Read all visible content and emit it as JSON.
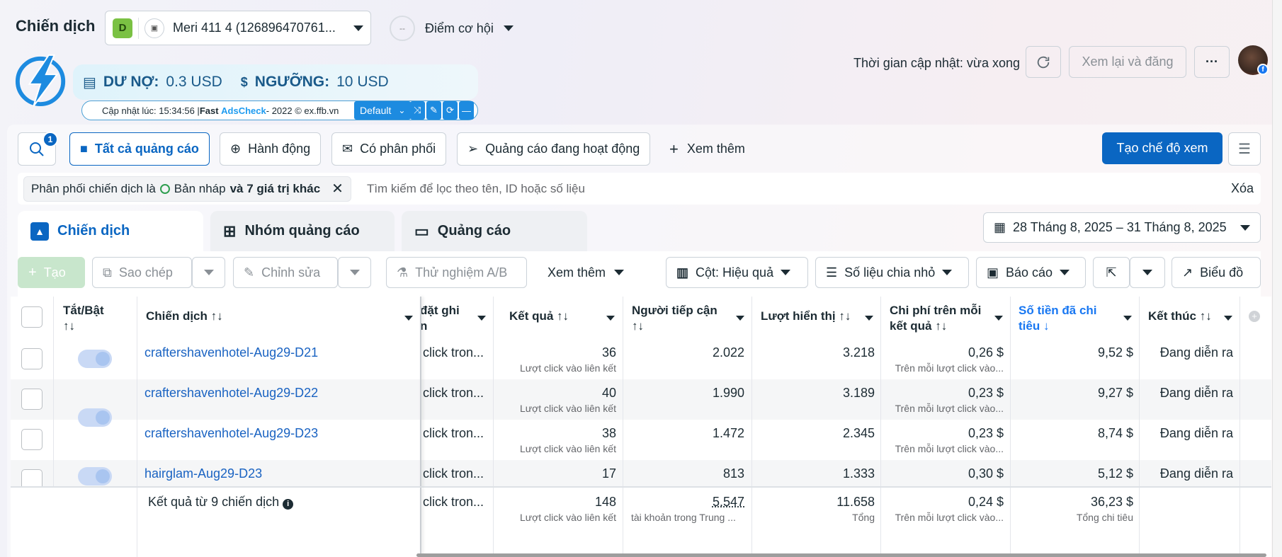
{
  "header": {
    "title": "Chiến dịch",
    "account": {
      "avatar_letter": "D",
      "name": "Meri 411 4 (126896470761..."
    },
    "opportunity": {
      "ring_text": "--",
      "label": "Điểm cơ hội"
    },
    "update_time": "Thời gian cập nhật: vừa xong",
    "review_button": "Xem lại và đăng",
    "more_button": "···"
  },
  "adscheck": {
    "debt_label": "DƯ NỢ:",
    "debt_value": "0.3 USD",
    "threshold_label": "NGƯỠNG:",
    "threshold_value": "10 USD",
    "updated_prefix": "Cập nhật lúc: 15:34:56 | ",
    "brand_fast": "Fast",
    "brand_adscheck": "AdsCheck",
    "updated_suffix": " - 2022 © ex.ffb.vn",
    "preset": "Default"
  },
  "filters": {
    "search_badge": "1",
    "buttons": [
      "Tất cả quảng cáo",
      "Hành động",
      "Có phân phối",
      "Quảng cáo đang hoạt động",
      "Xem thêm"
    ],
    "create_view": "Tạo chế độ xem",
    "chip_prefix": "Phân phối chiến dịch là",
    "chip_value": "Bản nháp",
    "chip_more": "và 7 giá trị khác",
    "search_placeholder": "Tìm kiếm để lọc theo tên, ID hoặc số liệu",
    "clear": "Xóa"
  },
  "tabs": [
    "Chiến dịch",
    "Nhóm quảng cáo",
    "Quảng cáo"
  ],
  "date_range": "28 Tháng 8, 2025 – 31 Tháng 8, 2025",
  "toolbar": {
    "create": "Tạo",
    "copy": "Sao chép",
    "edit": "Chỉnh sửa",
    "ab_test": "Thử nghiệm A/B",
    "more": "Xem thêm",
    "columns": "Cột: Hiệu quả",
    "breakdown": "Số liệu chia nhỏ",
    "reports": "Báo cáo",
    "chart": "Biểu đồ"
  },
  "table": {
    "headers": {
      "toggle": "Tắt/Bật",
      "toggle_sort": "↑↓",
      "campaign": "Chiến dịch ↑↓",
      "attribution_l1": "đặt ghi",
      "attribution_l2": "n",
      "results": "Kết quả ↑↓",
      "reach_l1": "Người tiếp cận",
      "reach_l2": "↑↓",
      "impressions": "Lượt hiển thị ↑↓",
      "cpr_l1": "Chi phí trên mỗi",
      "cpr_l2": "kết quả ↑↓",
      "spent_l1": "Số tiền đã chi",
      "spent_l2": "tiêu ↓",
      "ends": "Kết thúc ↑↓"
    },
    "rows": [
      {
        "name": "craftershavenhotel-Aug29-D21",
        "attribution": "click tron...",
        "results": "36",
        "results_sub": "Lượt click vào liên kết",
        "reach": "2.022",
        "impressions": "3.218",
        "cpr": "0,26 $",
        "cpr_sub": "Trên mỗi lượt click vào...",
        "spent": "9,52 $",
        "ends": "Đang diễn ra"
      },
      {
        "name": "craftershavenhotel-Aug29-D22",
        "attribution": "click tron...",
        "results": "40",
        "results_sub": "Lượt click vào liên kết",
        "reach": "1.990",
        "impressions": "3.189",
        "cpr": "0,23 $",
        "cpr_sub": "Trên mỗi lượt click vào...",
        "spent": "9,27 $",
        "ends": "Đang diễn ra"
      },
      {
        "name": "craftershavenhotel-Aug29-D23",
        "attribution": "click tron...",
        "results": "38",
        "results_sub": "Lượt click vào liên kết",
        "reach": "1.472",
        "impressions": "2.345",
        "cpr": "0,23 $",
        "cpr_sub": "Trên mỗi lượt click vào...",
        "spent": "8,74 $",
        "ends": "Đang diễn ra"
      },
      {
        "name": "hairglam-Aug29-D23",
        "attribution": "click tron...",
        "results": "17",
        "results_sub": "",
        "reach": "813",
        "impressions": "1.333",
        "cpr": "0,30 $",
        "cpr_sub": "",
        "spent": "5,12 $",
        "ends": "Đang diễn ra"
      }
    ],
    "totals": {
      "label": "Kết quả từ 9 chiến dịch",
      "attribution": "click tron...",
      "results": "148",
      "results_sub": "Lượt click vào liên kết",
      "reach": "5.547",
      "reach_sub": "tài khoản trong Trung ...",
      "impressions": "11.658",
      "impressions_sub": "Tổng",
      "cpr": "0,24 $",
      "cpr_sub": "Trên mỗi lượt click vào...",
      "spent": "36,23 $",
      "spent_sub": "Tổng chi tiêu"
    }
  },
  "colors": {
    "accent": "#0a66c2",
    "link": "#1a63c2",
    "adscheck_blue": "#1d8be0"
  }
}
